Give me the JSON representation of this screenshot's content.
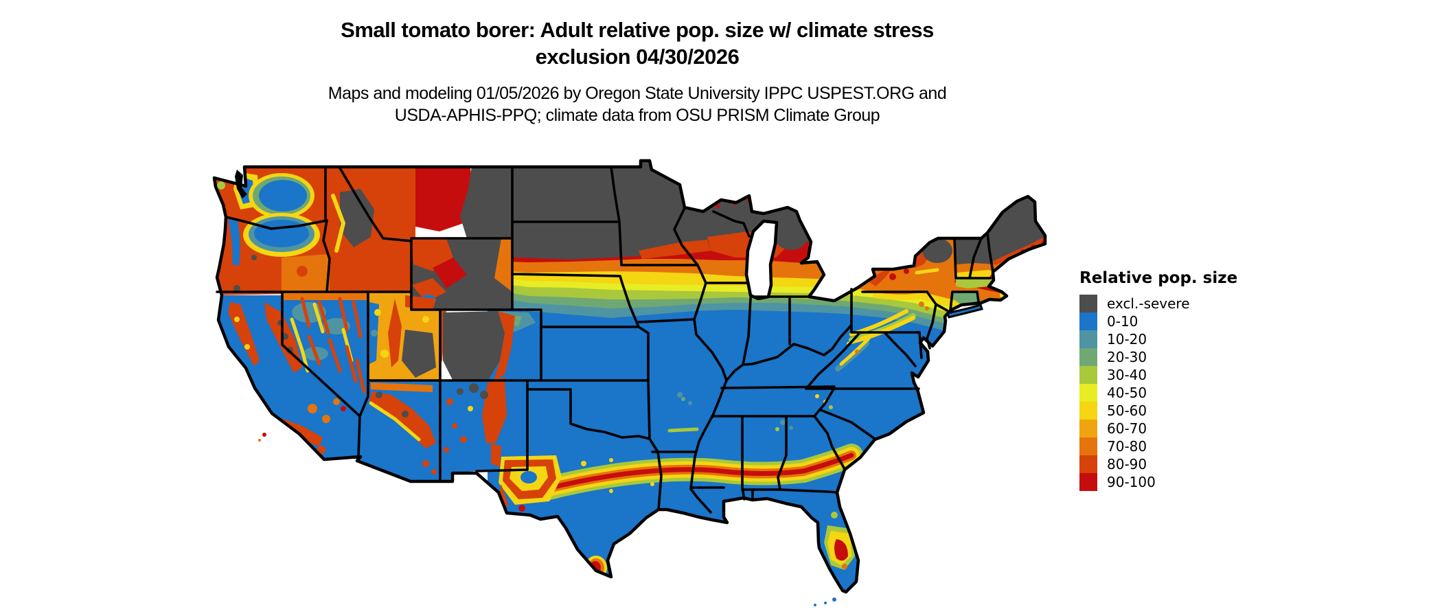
{
  "title": {
    "line1": "Small tomato borer: Adult relative pop. size w/ climate stress",
    "line2": "exclusion 04/30/2026"
  },
  "subtitle": {
    "line1": "Maps and modeling 01/05/2026 by Oregon State University IPPC USPEST.ORG and",
    "line2": "USDA-APHIS-PPQ; climate data from OSU PRISM Climate Group"
  },
  "legend": {
    "title": "Relative pop. size",
    "items": [
      {
        "label": "excl.-severe",
        "color_key": "excl"
      },
      {
        "label": "0-10",
        "color_key": "c0"
      },
      {
        "label": "10-20",
        "color_key": "c10"
      },
      {
        "label": "20-30",
        "color_key": "c20"
      },
      {
        "label": "30-40",
        "color_key": "c30"
      },
      {
        "label": "40-50",
        "color_key": "c40"
      },
      {
        "label": "50-60",
        "color_key": "c50"
      },
      {
        "label": "60-70",
        "color_key": "c60"
      },
      {
        "label": "70-80",
        "color_key": "c70"
      },
      {
        "label": "80-90",
        "color_key": "c80"
      },
      {
        "label": "90-100",
        "color_key": "c90"
      }
    ]
  },
  "palette": {
    "excl": "#4d4d4d",
    "c0": "#1b75c8",
    "c10": "#4f94a3",
    "c20": "#70a873",
    "c30": "#a9c83b",
    "c40": "#e7ec25",
    "c50": "#f4d613",
    "c60": "#f0a410",
    "c70": "#e5740d",
    "c80": "#d6420a",
    "c90": "#c60d0d",
    "border": "#000000",
    "water": "#ffffff"
  },
  "map": {
    "description": "Conterminous United States raster map of relative population size with climate stress exclusion; gray excluded zones across the northern tier and high mountains, blue low values across the south, warm transition band through the central latitudes, red high-stress band across the Deep South and western mountain ranges."
  }
}
